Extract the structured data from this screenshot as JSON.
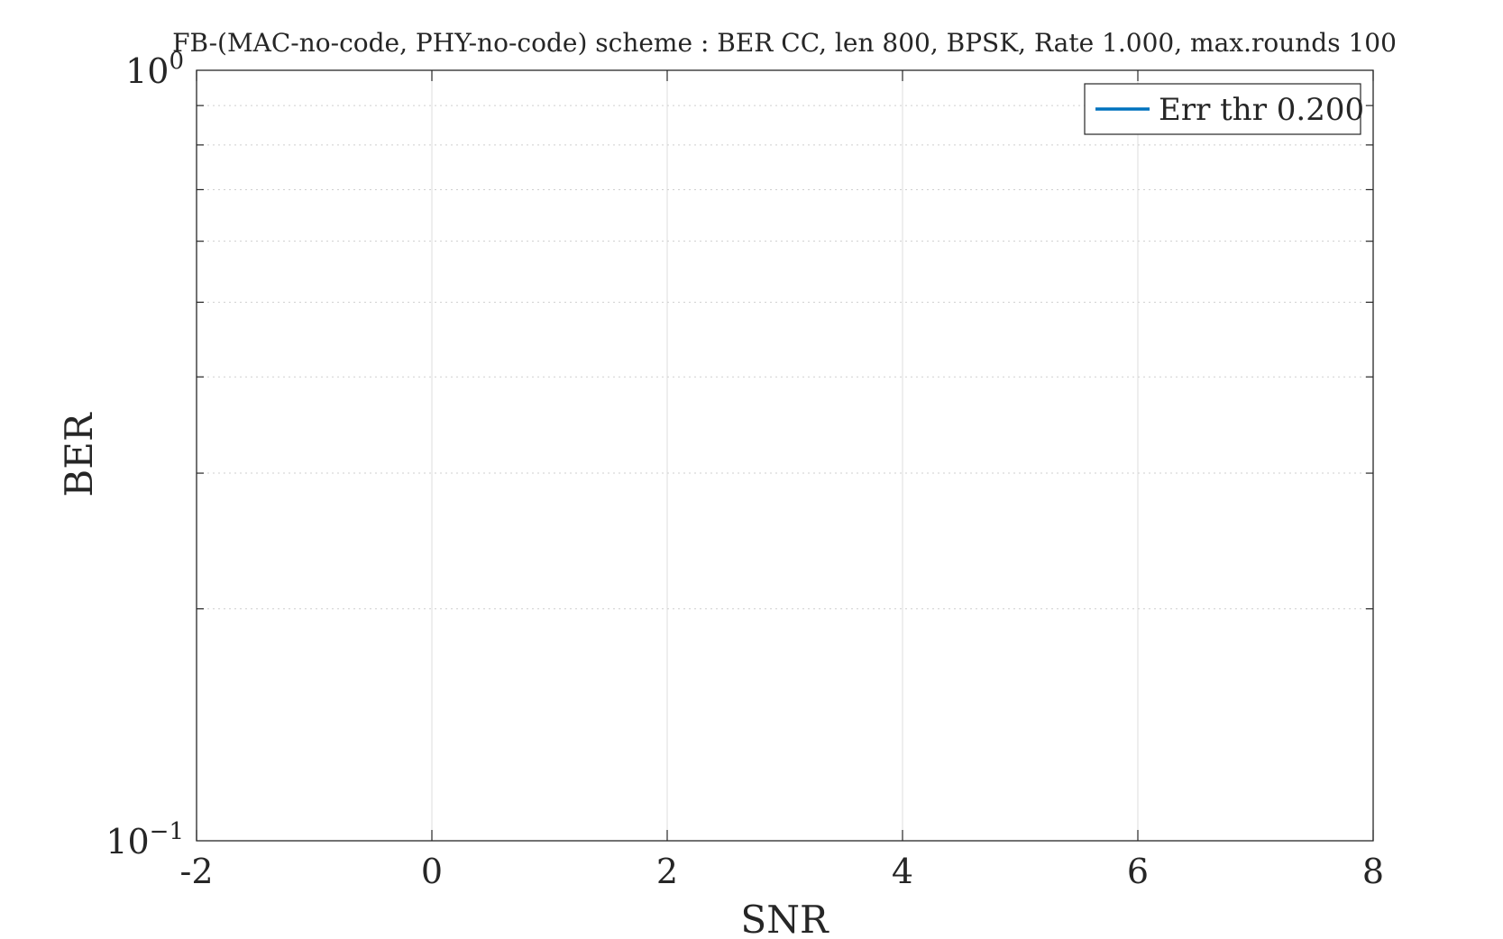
{
  "chart_data": {
    "type": "line",
    "title": "FB-(MAC-no-code, PHY-no-code) scheme : BER CC, len 800, BPSK, Rate 1.000, max.rounds 100",
    "xlabel": "SNR",
    "ylabel": "BER",
    "xlim": [
      -2,
      8
    ],
    "ylim": [
      0.1,
      1
    ],
    "yscale": "log",
    "x_ticks": [
      -2,
      0,
      2,
      4,
      6,
      8
    ],
    "x_tick_labels": [
      "-2",
      "0",
      "2",
      "4",
      "6",
      "8"
    ],
    "y_major_ticks": [
      {
        "value": 1,
        "mantissa": "10",
        "exponent": "0"
      },
      {
        "value": 0.1,
        "mantissa": "10",
        "exponent": "−1"
      }
    ],
    "y_minor_ticks": [
      0.2,
      0.3,
      0.4,
      0.5,
      0.6,
      0.7,
      0.8,
      0.9
    ],
    "grid": true,
    "legend_position": "top-right",
    "series": [
      {
        "name": "Err thr 0.200",
        "x": [],
        "y": [],
        "color": "#0072BD"
      }
    ]
  }
}
